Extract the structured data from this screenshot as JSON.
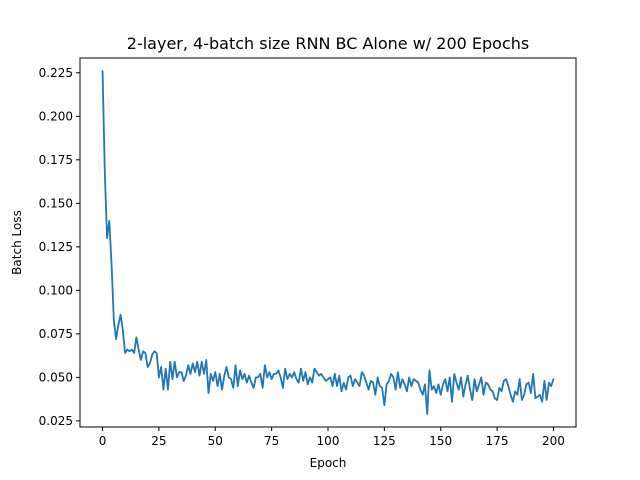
{
  "chart_data": {
    "type": "line",
    "title": "2-layer, 4-batch size RNN BC Alone w/ 200 Epochs",
    "xlabel": "Epoch",
    "ylabel": "Batch Loss",
    "xlim": [
      -10,
      210
    ],
    "ylim": [
      0.0215,
      0.2335
    ],
    "xticks": [
      0,
      25,
      50,
      75,
      100,
      125,
      150,
      175,
      200
    ],
    "xtick_labels": [
      "0",
      "25",
      "50",
      "75",
      "100",
      "125",
      "150",
      "175",
      "200"
    ],
    "yticks": [
      0.025,
      0.05,
      0.075,
      0.1,
      0.125,
      0.15,
      0.175,
      0.2,
      0.225
    ],
    "ytick_labels": [
      "0.025",
      "0.050",
      "0.075",
      "0.100",
      "0.125",
      "0.150",
      "0.175",
      "0.200",
      "0.225"
    ],
    "grid": false,
    "series": [
      {
        "color": "#1f77b4",
        "values": [
          0.226,
          0.168,
          0.13,
          0.14,
          0.115,
          0.083,
          0.072,
          0.08,
          0.086,
          0.077,
          0.064,
          0.066,
          0.065,
          0.066,
          0.064,
          0.073,
          0.066,
          0.06,
          0.065,
          0.064,
          0.056,
          0.058,
          0.063,
          0.065,
          0.064,
          0.05,
          0.056,
          0.043,
          0.055,
          0.043,
          0.059,
          0.049,
          0.059,
          0.05,
          0.053,
          0.053,
          0.048,
          0.051,
          0.057,
          0.052,
          0.058,
          0.053,
          0.059,
          0.051,
          0.059,
          0.052,
          0.06,
          0.041,
          0.052,
          0.048,
          0.053,
          0.045,
          0.052,
          0.043,
          0.051,
          0.056,
          0.05,
          0.049,
          0.044,
          0.057,
          0.045,
          0.054,
          0.049,
          0.052,
          0.047,
          0.051,
          0.047,
          0.044,
          0.05,
          0.05,
          0.052,
          0.044,
          0.057,
          0.05,
          0.053,
          0.049,
          0.052,
          0.052,
          0.054,
          0.05,
          0.044,
          0.055,
          0.049,
          0.052,
          0.05,
          0.053,
          0.049,
          0.047,
          0.055,
          0.048,
          0.053,
          0.046,
          0.05,
          0.047,
          0.055,
          0.053,
          0.051,
          0.052,
          0.05,
          0.048,
          0.049,
          0.05,
          0.045,
          0.052,
          0.045,
          0.051,
          0.042,
          0.047,
          0.043,
          0.05,
          0.051,
          0.045,
          0.049,
          0.047,
          0.045,
          0.053,
          0.051,
          0.047,
          0.043,
          0.048,
          0.047,
          0.04,
          0.05,
          0.045,
          0.044,
          0.034,
          0.046,
          0.048,
          0.052,
          0.05,
          0.043,
          0.053,
          0.044,
          0.049,
          0.046,
          0.042,
          0.05,
          0.045,
          0.049,
          0.048,
          0.047,
          0.043,
          0.04,
          0.046,
          0.029,
          0.054,
          0.043,
          0.045,
          0.041,
          0.046,
          0.04,
          0.046,
          0.049,
          0.042,
          0.05,
          0.036,
          0.052,
          0.047,
          0.043,
          0.05,
          0.039,
          0.046,
          0.051,
          0.043,
          0.037,
          0.049,
          0.042,
          0.046,
          0.05,
          0.04,
          0.047,
          0.046,
          0.043,
          0.042,
          0.038,
          0.037,
          0.044,
          0.042,
          0.048,
          0.049,
          0.045,
          0.04,
          0.036,
          0.042,
          0.04,
          0.049,
          0.037,
          0.04,
          0.046,
          0.047,
          0.041,
          0.052,
          0.038,
          0.039,
          0.04,
          0.036,
          0.048,
          0.037,
          0.047,
          0.045,
          0.049
        ]
      }
    ]
  }
}
